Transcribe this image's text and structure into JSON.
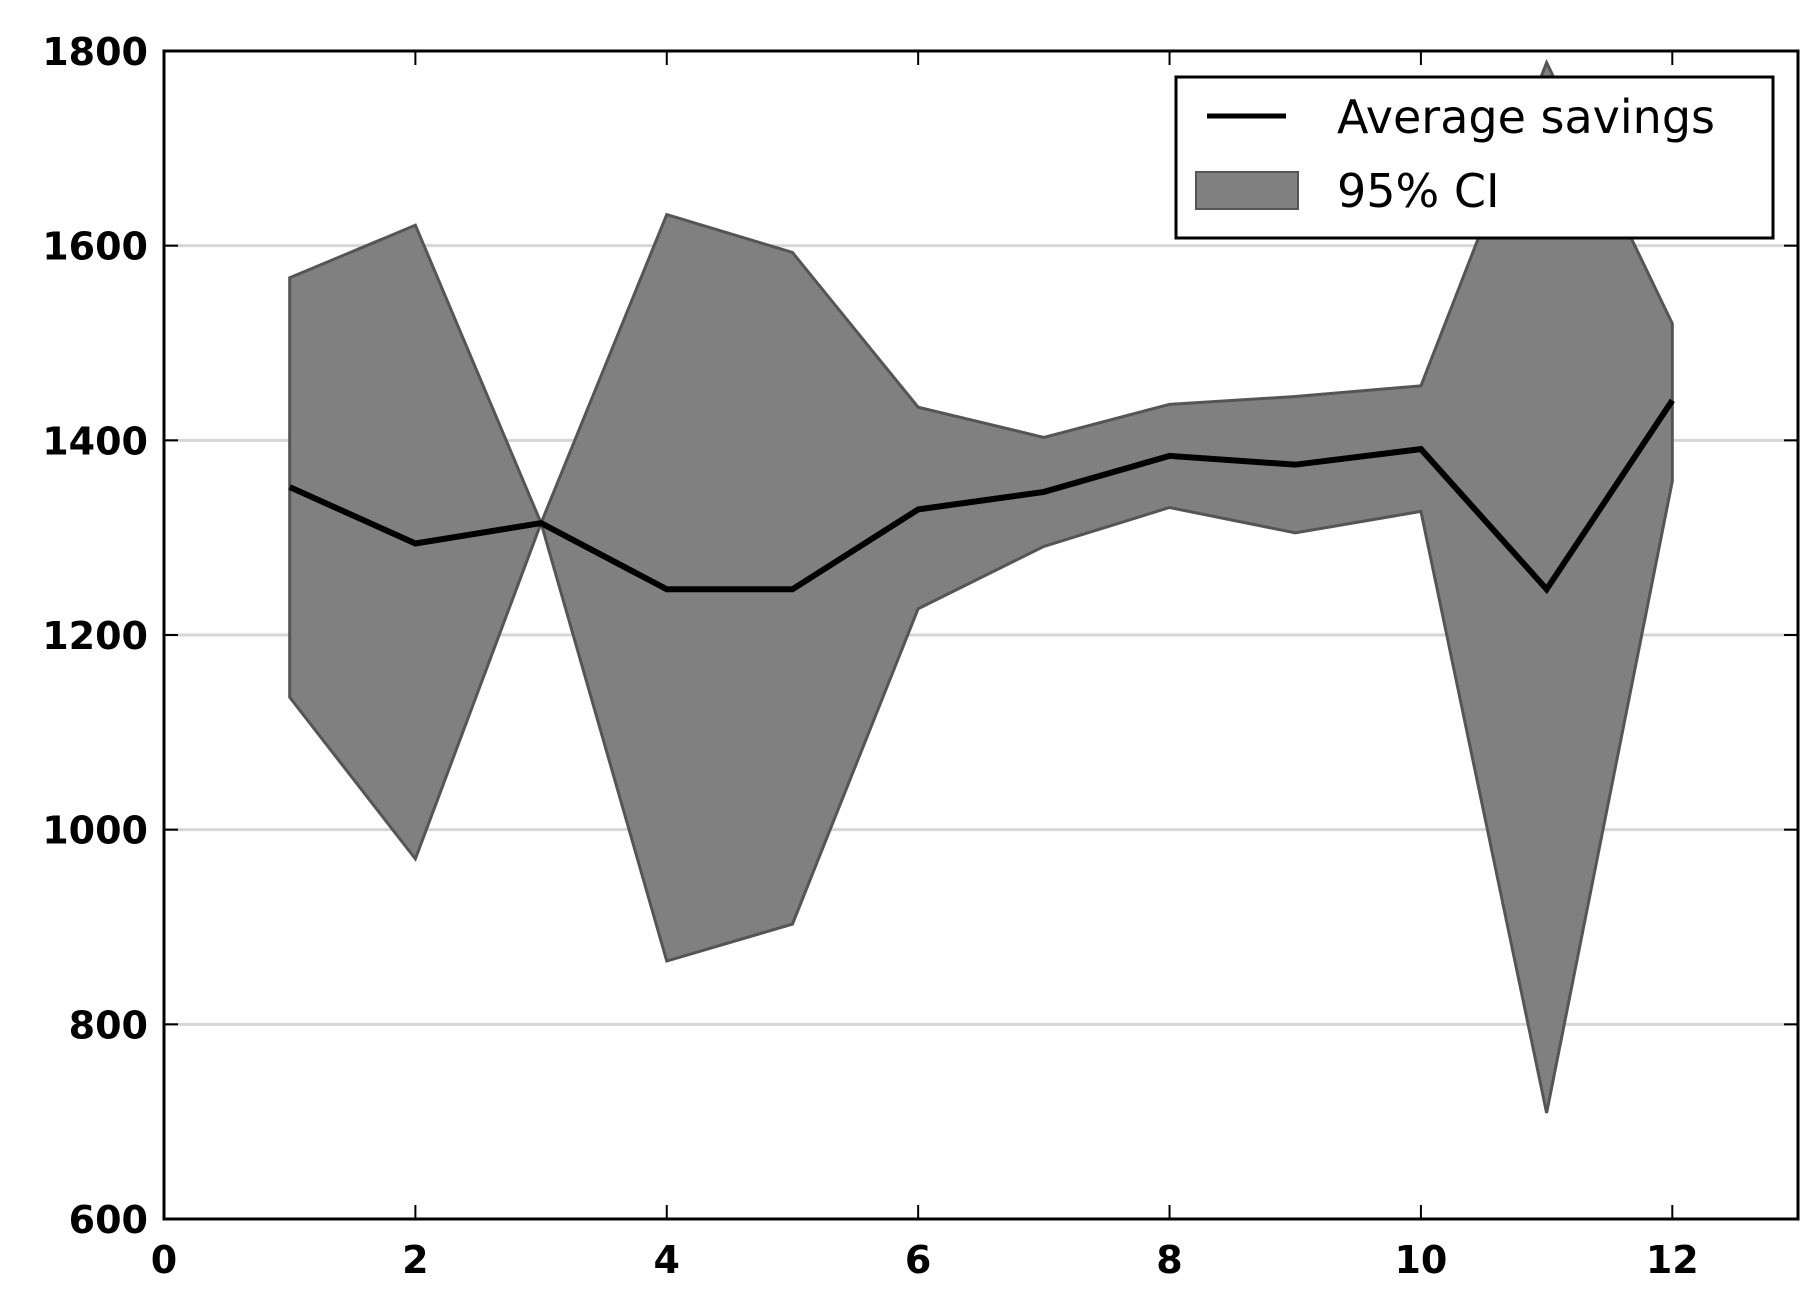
{
  "chart_data": {
    "type": "line",
    "x": [
      1,
      2,
      3,
      4,
      5,
      6,
      7,
      8,
      9,
      10,
      11,
      12
    ],
    "series": [
      {
        "name": "Average savings",
        "values": [
          1352,
          1294,
          1315,
          1247,
          1247,
          1329,
          1347,
          1384,
          1375,
          1391,
          1247,
          1441
        ],
        "color": "#000000"
      }
    ],
    "ci": {
      "name": "95% CI",
      "lower": [
        1136,
        970,
        1315,
        865,
        903,
        1227,
        1291,
        1331,
        1305,
        1327,
        709,
        1358
      ],
      "upper": [
        1567,
        1621,
        1315,
        1632,
        1593,
        1434,
        1403,
        1437,
        1445,
        1456,
        1788,
        1520
      ],
      "color": "#808080"
    },
    "xlim": [
      0,
      13
    ],
    "ylim": [
      600,
      1800
    ],
    "xticks": [
      "0",
      "2",
      "4",
      "6",
      "8",
      "10",
      "12"
    ],
    "yticks": [
      "600",
      "800",
      "1000",
      "1200",
      "1400",
      "1600",
      "1800"
    ],
    "grid": "horizontal",
    "legend_position": "top-right"
  }
}
